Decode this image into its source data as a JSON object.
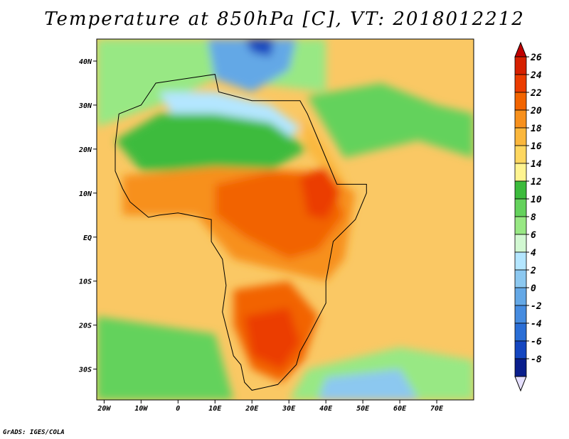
{
  "title": "Temperature at 850hPa [C], VT: 2018012212",
  "credit": "GrADS: IGES/COLA",
  "map": {
    "lon_range": [
      -22,
      80
    ],
    "lat_range": [
      -37,
      45
    ],
    "lon_ticks": [
      {
        "value": -20,
        "label": "20W"
      },
      {
        "value": -10,
        "label": "10W"
      },
      {
        "value": 0,
        "label": "0"
      },
      {
        "value": 10,
        "label": "10E"
      },
      {
        "value": 20,
        "label": "20E"
      },
      {
        "value": 30,
        "label": "30E"
      },
      {
        "value": 40,
        "label": "40E"
      },
      {
        "value": 50,
        "label": "50E"
      },
      {
        "value": 60,
        "label": "60E"
      },
      {
        "value": 70,
        "label": "70E"
      }
    ],
    "lat_ticks": [
      {
        "value": 40,
        "label": "40N"
      },
      {
        "value": 30,
        "label": "30N"
      },
      {
        "value": 20,
        "label": "20N"
      },
      {
        "value": 10,
        "label": "10N"
      },
      {
        "value": 0,
        "label": "EQ"
      },
      {
        "value": -10,
        "label": "10S"
      },
      {
        "value": -20,
        "label": "20S"
      },
      {
        "value": -30,
        "label": "30S"
      }
    ]
  },
  "colorbar": {
    "labels": [
      "26",
      "24",
      "22",
      "20",
      "18",
      "16",
      "14",
      "12",
      "10",
      "8",
      "6",
      "4",
      "2",
      "0",
      "-2",
      "-4",
      "-6",
      "-8"
    ],
    "colors": [
      "#d62000",
      "#eb3c00",
      "#f26400",
      "#f7901c",
      "#fbb73c",
      "#fed760",
      "#fff490",
      "#3cbb3c",
      "#64d25c",
      "#98e884",
      "#d2f8d2",
      "#b4e6ff",
      "#8cc8f0",
      "#64a8e6",
      "#468ce0",
      "#2a6ed6",
      "#1446c0",
      "#0a1e8c"
    ],
    "over_color": "#c00000",
    "under_color": "#e6e0ff"
  },
  "fields": {
    "background_color": "#fac864",
    "regions": [
      {
        "name": "north-ocean-cool",
        "color": "#98e884",
        "points": [
          [
            -22,
            45
          ],
          [
            40,
            45
          ],
          [
            40,
            33
          ],
          [
            10,
            36
          ],
          [
            -5,
            30
          ],
          [
            -22,
            25
          ]
        ]
      },
      {
        "name": "mediterranean-cold",
        "color": "#64a8e6",
        "points": [
          [
            8,
            45
          ],
          [
            32,
            45
          ],
          [
            30,
            38
          ],
          [
            20,
            33
          ],
          [
            10,
            36
          ]
        ]
      },
      {
        "name": "balkans-coldest",
        "color": "#1446c0",
        "points": [
          [
            18,
            45
          ],
          [
            26,
            45
          ],
          [
            25,
            41
          ],
          [
            20,
            42
          ]
        ]
      },
      {
        "name": "north-africa-blue",
        "color": "#b4e6ff",
        "points": [
          [
            -5,
            33
          ],
          [
            10,
            33
          ],
          [
            25,
            30
          ],
          [
            33,
            25
          ],
          [
            28,
            20
          ],
          [
            15,
            22
          ],
          [
            0,
            25
          ]
        ]
      },
      {
        "name": "sahara-green",
        "color": "#3cbb3c",
        "points": [
          [
            -17,
            22
          ],
          [
            -5,
            28
          ],
          [
            10,
            28
          ],
          [
            25,
            26
          ],
          [
            35,
            20
          ],
          [
            25,
            15
          ],
          [
            10,
            15
          ],
          [
            -10,
            15
          ]
        ]
      },
      {
        "name": "arabia-green",
        "color": "#64d25c",
        "points": [
          [
            35,
            32
          ],
          [
            55,
            35
          ],
          [
            70,
            30
          ],
          [
            80,
            28
          ],
          [
            80,
            18
          ],
          [
            65,
            22
          ],
          [
            55,
            20
          ],
          [
            45,
            18
          ],
          [
            40,
            25
          ]
        ]
      },
      {
        "name": "red-sea-warm",
        "color": "#fbb73c",
        "points": [
          [
            33,
            28
          ],
          [
            40,
            20
          ],
          [
            45,
            13
          ],
          [
            42,
            12
          ],
          [
            35,
            20
          ]
        ]
      },
      {
        "name": "tropics-orange",
        "color": "#f7901c",
        "points": [
          [
            -15,
            14
          ],
          [
            10,
            16
          ],
          [
            40,
            15
          ],
          [
            48,
            10
          ],
          [
            45,
            -5
          ],
          [
            40,
            -10
          ],
          [
            30,
            -8
          ],
          [
            15,
            -5
          ],
          [
            5,
            5
          ],
          [
            -15,
            5
          ]
        ]
      },
      {
        "name": "central-africa-hot",
        "color": "#f26400",
        "points": [
          [
            10,
            12
          ],
          [
            25,
            15
          ],
          [
            40,
            14
          ],
          [
            45,
            5
          ],
          [
            38,
            -3
          ],
          [
            30,
            -5
          ],
          [
            18,
            0
          ],
          [
            10,
            5
          ]
        ]
      },
      {
        "name": "ethiopia-hottest",
        "color": "#eb3c00",
        "points": [
          [
            33,
            14
          ],
          [
            40,
            16
          ],
          [
            44,
            10
          ],
          [
            40,
            4
          ],
          [
            35,
            5
          ]
        ]
      },
      {
        "name": "southern-africa-hot",
        "color": "#f26400",
        "points": [
          [
            15,
            -12
          ],
          [
            30,
            -10
          ],
          [
            38,
            -18
          ],
          [
            34,
            -28
          ],
          [
            28,
            -33
          ],
          [
            20,
            -30
          ],
          [
            15,
            -20
          ]
        ]
      },
      {
        "name": "kalahari-hottest",
        "color": "#eb3c00",
        "points": [
          [
            18,
            -18
          ],
          [
            30,
            -16
          ],
          [
            33,
            -24
          ],
          [
            28,
            -30
          ],
          [
            20,
            -27
          ]
        ]
      },
      {
        "name": "south-ocean-green",
        "color": "#64d25c",
        "points": [
          [
            -22,
            -18
          ],
          [
            10,
            -22
          ],
          [
            15,
            -37
          ],
          [
            -22,
            -37
          ]
        ]
      },
      {
        "name": "south-indian-green",
        "color": "#98e884",
        "points": [
          [
            35,
            -30
          ],
          [
            60,
            -25
          ],
          [
            80,
            -28
          ],
          [
            80,
            -37
          ],
          [
            30,
            -37
          ]
        ]
      },
      {
        "name": "south-indian-blue",
        "color": "#8cc8f0",
        "points": [
          [
            40,
            -32
          ],
          [
            60,
            -30
          ],
          [
            65,
            -37
          ],
          [
            38,
            -37
          ]
        ]
      }
    ],
    "land_outline": [
      [
        -17,
        21
      ],
      [
        -16,
        28
      ],
      [
        -10,
        30
      ],
      [
        -6,
        35
      ],
      [
        10,
        37
      ],
      [
        11,
        33
      ],
      [
        20,
        31
      ],
      [
        30,
        31
      ],
      [
        33,
        31
      ],
      [
        35,
        28
      ],
      [
        38,
        22
      ],
      [
        43,
        12
      ],
      [
        51,
        12
      ],
      [
        51,
        10
      ],
      [
        48,
        4
      ],
      [
        42,
        -1
      ],
      [
        40,
        -10
      ],
      [
        40,
        -15
      ],
      [
        35,
        -23
      ],
      [
        33,
        -26
      ],
      [
        32,
        -29
      ],
      [
        27,
        -33.5
      ],
      [
        20,
        -34.8
      ],
      [
        18,
        -33
      ],
      [
        17,
        -29
      ],
      [
        15,
        -27
      ],
      [
        12,
        -17
      ],
      [
        13,
        -11
      ],
      [
        12,
        -5
      ],
      [
        9,
        -1
      ],
      [
        9,
        4
      ],
      [
        6,
        4.5
      ],
      [
        0,
        5.5
      ],
      [
        -5,
        5
      ],
      [
        -8,
        4.5
      ],
      [
        -13,
        8
      ],
      [
        -15,
        11
      ],
      [
        -17,
        15
      ],
      [
        -17,
        21
      ]
    ]
  }
}
